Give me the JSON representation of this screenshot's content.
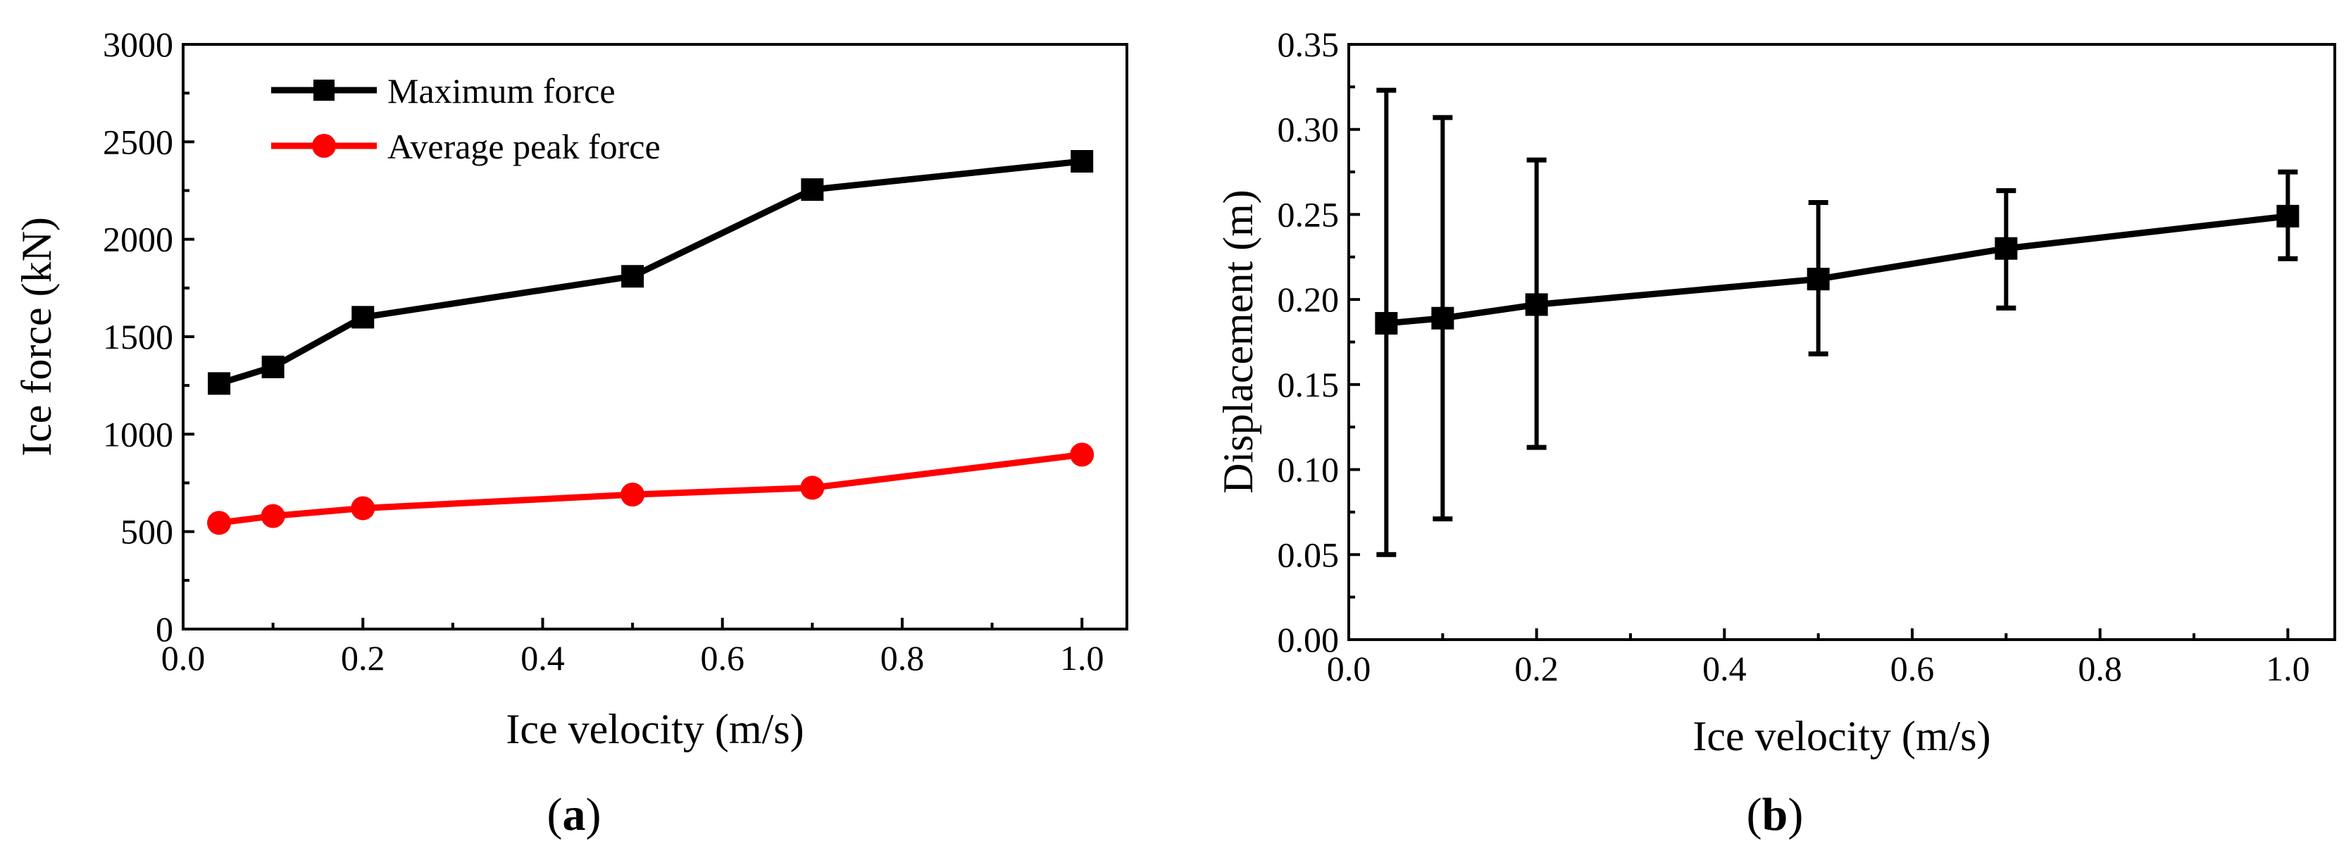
{
  "chart_data": [
    {
      "panel": "(a)",
      "panel_open": "(",
      "panel_letter": "a",
      "panel_close": ")",
      "type": "line",
      "xlabel": "Ice velocity (m/s)",
      "ylabel": "Ice force (kN)",
      "xlim": [
        0.0,
        1.05
      ],
      "ylim": [
        0,
        3000
      ],
      "xticks": [
        "0.0",
        "0.2",
        "0.4",
        "0.6",
        "0.8",
        "1.0"
      ],
      "yticks": [
        "0",
        "500",
        "1000",
        "1500",
        "2000",
        "2500",
        "3000"
      ],
      "legend_position": "top-left",
      "series": [
        {
          "name": "Maximum force",
          "marker": "square",
          "color": "#000000",
          "x": [
            0.04,
            0.1,
            0.2,
            0.5,
            0.7,
            1.0
          ],
          "values": [
            1260,
            1345,
            1600,
            1810,
            2255,
            2400
          ]
        },
        {
          "name": "Average peak force",
          "marker": "circle",
          "color": "#ff0000",
          "x": [
            0.04,
            0.1,
            0.2,
            0.5,
            0.7,
            1.0
          ],
          "values": [
            545,
            580,
            620,
            690,
            725,
            895
          ]
        }
      ]
    },
    {
      "panel": "(b)",
      "panel_open": "(",
      "panel_letter": "b",
      "panel_close": ")",
      "type": "line",
      "xlabel": "Ice velocity (m/s)",
      "ylabel": "Displacement (m)",
      "xlim": [
        0.0,
        1.05
      ],
      "ylim": [
        0.0,
        0.35
      ],
      "xticks": [
        "0.0",
        "0.2",
        "0.4",
        "0.6",
        "0.8",
        "1.0"
      ],
      "yticks": [
        "0.00",
        "0.05",
        "0.10",
        "0.15",
        "0.20",
        "0.25",
        "0.30",
        "0.35"
      ],
      "series": [
        {
          "name": "Displacement",
          "marker": "square",
          "color": "#000000",
          "x": [
            0.04,
            0.1,
            0.2,
            0.5,
            0.7,
            1.0
          ],
          "values": [
            0.186,
            0.189,
            0.197,
            0.212,
            0.23,
            0.249
          ],
          "err_low": [
            0.05,
            0.071,
            0.113,
            0.168,
            0.195,
            0.224
          ],
          "err_high": [
            0.323,
            0.307,
            0.282,
            0.257,
            0.264,
            0.275
          ]
        }
      ]
    }
  ]
}
